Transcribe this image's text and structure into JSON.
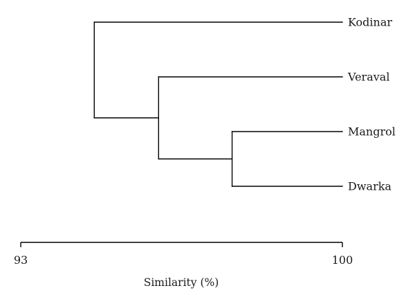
{
  "diagram": {
    "type": "dendrogram",
    "leaves": [
      {
        "id": "kodinar",
        "label": "Kodinar"
      },
      {
        "id": "veraval",
        "label": "Veraval"
      },
      {
        "id": "mangrol",
        "label": "Mangrol"
      },
      {
        "id": "dwarka",
        "label": "Dwarka"
      }
    ],
    "merges": [
      {
        "id": "m1",
        "children": [
          "mangrol",
          "dwarka"
        ],
        "similarity": 97.6
      },
      {
        "id": "m2",
        "children": [
          "veraval",
          "m1"
        ],
        "similarity": 96.0
      },
      {
        "id": "m3",
        "children": [
          "kodinar",
          "m2"
        ],
        "similarity": 94.6
      }
    ],
    "axis": {
      "title": "Similarity (%)",
      "min": 93,
      "max": 100,
      "ticks": [
        {
          "value": 93,
          "label": "93"
        },
        {
          "value": 100,
          "label": "100"
        }
      ]
    }
  }
}
